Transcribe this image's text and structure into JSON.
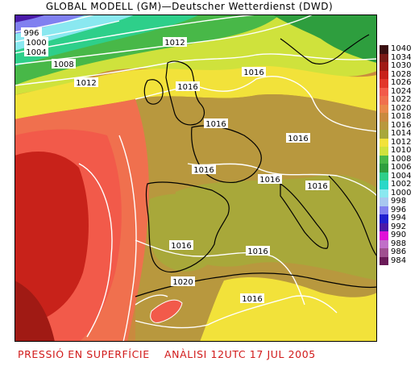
{
  "title": "GLOBAL MODELL (GM)—Deutscher Wetterdienst (DWD)",
  "caption": {
    "left": "PRESSIÓ EN SUPERFÍCIE",
    "right": "ANÀLISI 12UTC 17 JUL 2005"
  },
  "isobar_labels": [
    "996",
    "1000",
    "1004",
    "1008",
    "1012",
    "1012",
    "1016",
    "1016",
    "1016",
    "1016",
    "1016",
    "1016",
    "1016",
    "1016",
    "1016",
    "1020",
    "1016"
  ],
  "legend": [
    {
      "label": "1040",
      "color": "#3a0f10"
    },
    {
      "label": "1034",
      "color": "#7a1a16"
    },
    {
      "label": "1030",
      "color": "#a01a14"
    },
    {
      "label": "1028",
      "color": "#c8221a"
    },
    {
      "label": "1026",
      "color": "#e2362a"
    },
    {
      "label": "1024",
      "color": "#f25a4a"
    },
    {
      "label": "1022",
      "color": "#f0704e"
    },
    {
      "label": "1020",
      "color": "#e9894a"
    },
    {
      "label": "1018",
      "color": "#c98a3e"
    },
    {
      "label": "1016",
      "color": "#b8983e"
    },
    {
      "label": "1014",
      "color": "#a8a83a"
    },
    {
      "label": "1012",
      "color": "#f2e23a"
    },
    {
      "label": "1010",
      "color": "#cfe23c"
    },
    {
      "label": "1008",
      "color": "#48b848"
    },
    {
      "label": "1006",
      "color": "#2e9e3e"
    },
    {
      "label": "1004",
      "color": "#2ecf8a"
    },
    {
      "label": "1002",
      "color": "#2ad8c8"
    },
    {
      "label": "1000",
      "color": "#8ae8f0"
    },
    {
      "label": "998",
      "color": "#a8c8f0"
    },
    {
      "label": "996",
      "color": "#8080f0"
    },
    {
      "label": "994",
      "color": "#2020d0"
    },
    {
      "label": "992",
      "color": "#4a1aa8"
    },
    {
      "label": "990",
      "color": "#e010d8"
    },
    {
      "label": "988",
      "color": "#c070c8"
    },
    {
      "label": "986",
      "color": "#a05090"
    },
    {
      "label": "984",
      "color": "#6a1a58"
    }
  ],
  "colors": {
    "high_core": "#c8221a",
    "high_mid": "#f25a4a",
    "high_outer": "#f0704e",
    "land_1016": "#b8983e",
    "land_1014": "#a8a83a",
    "sea_1018": "#c98a3e",
    "yellow_1012": "#f2e23a",
    "green_1008": "#48b848",
    "low_north": "#8080f0"
  }
}
